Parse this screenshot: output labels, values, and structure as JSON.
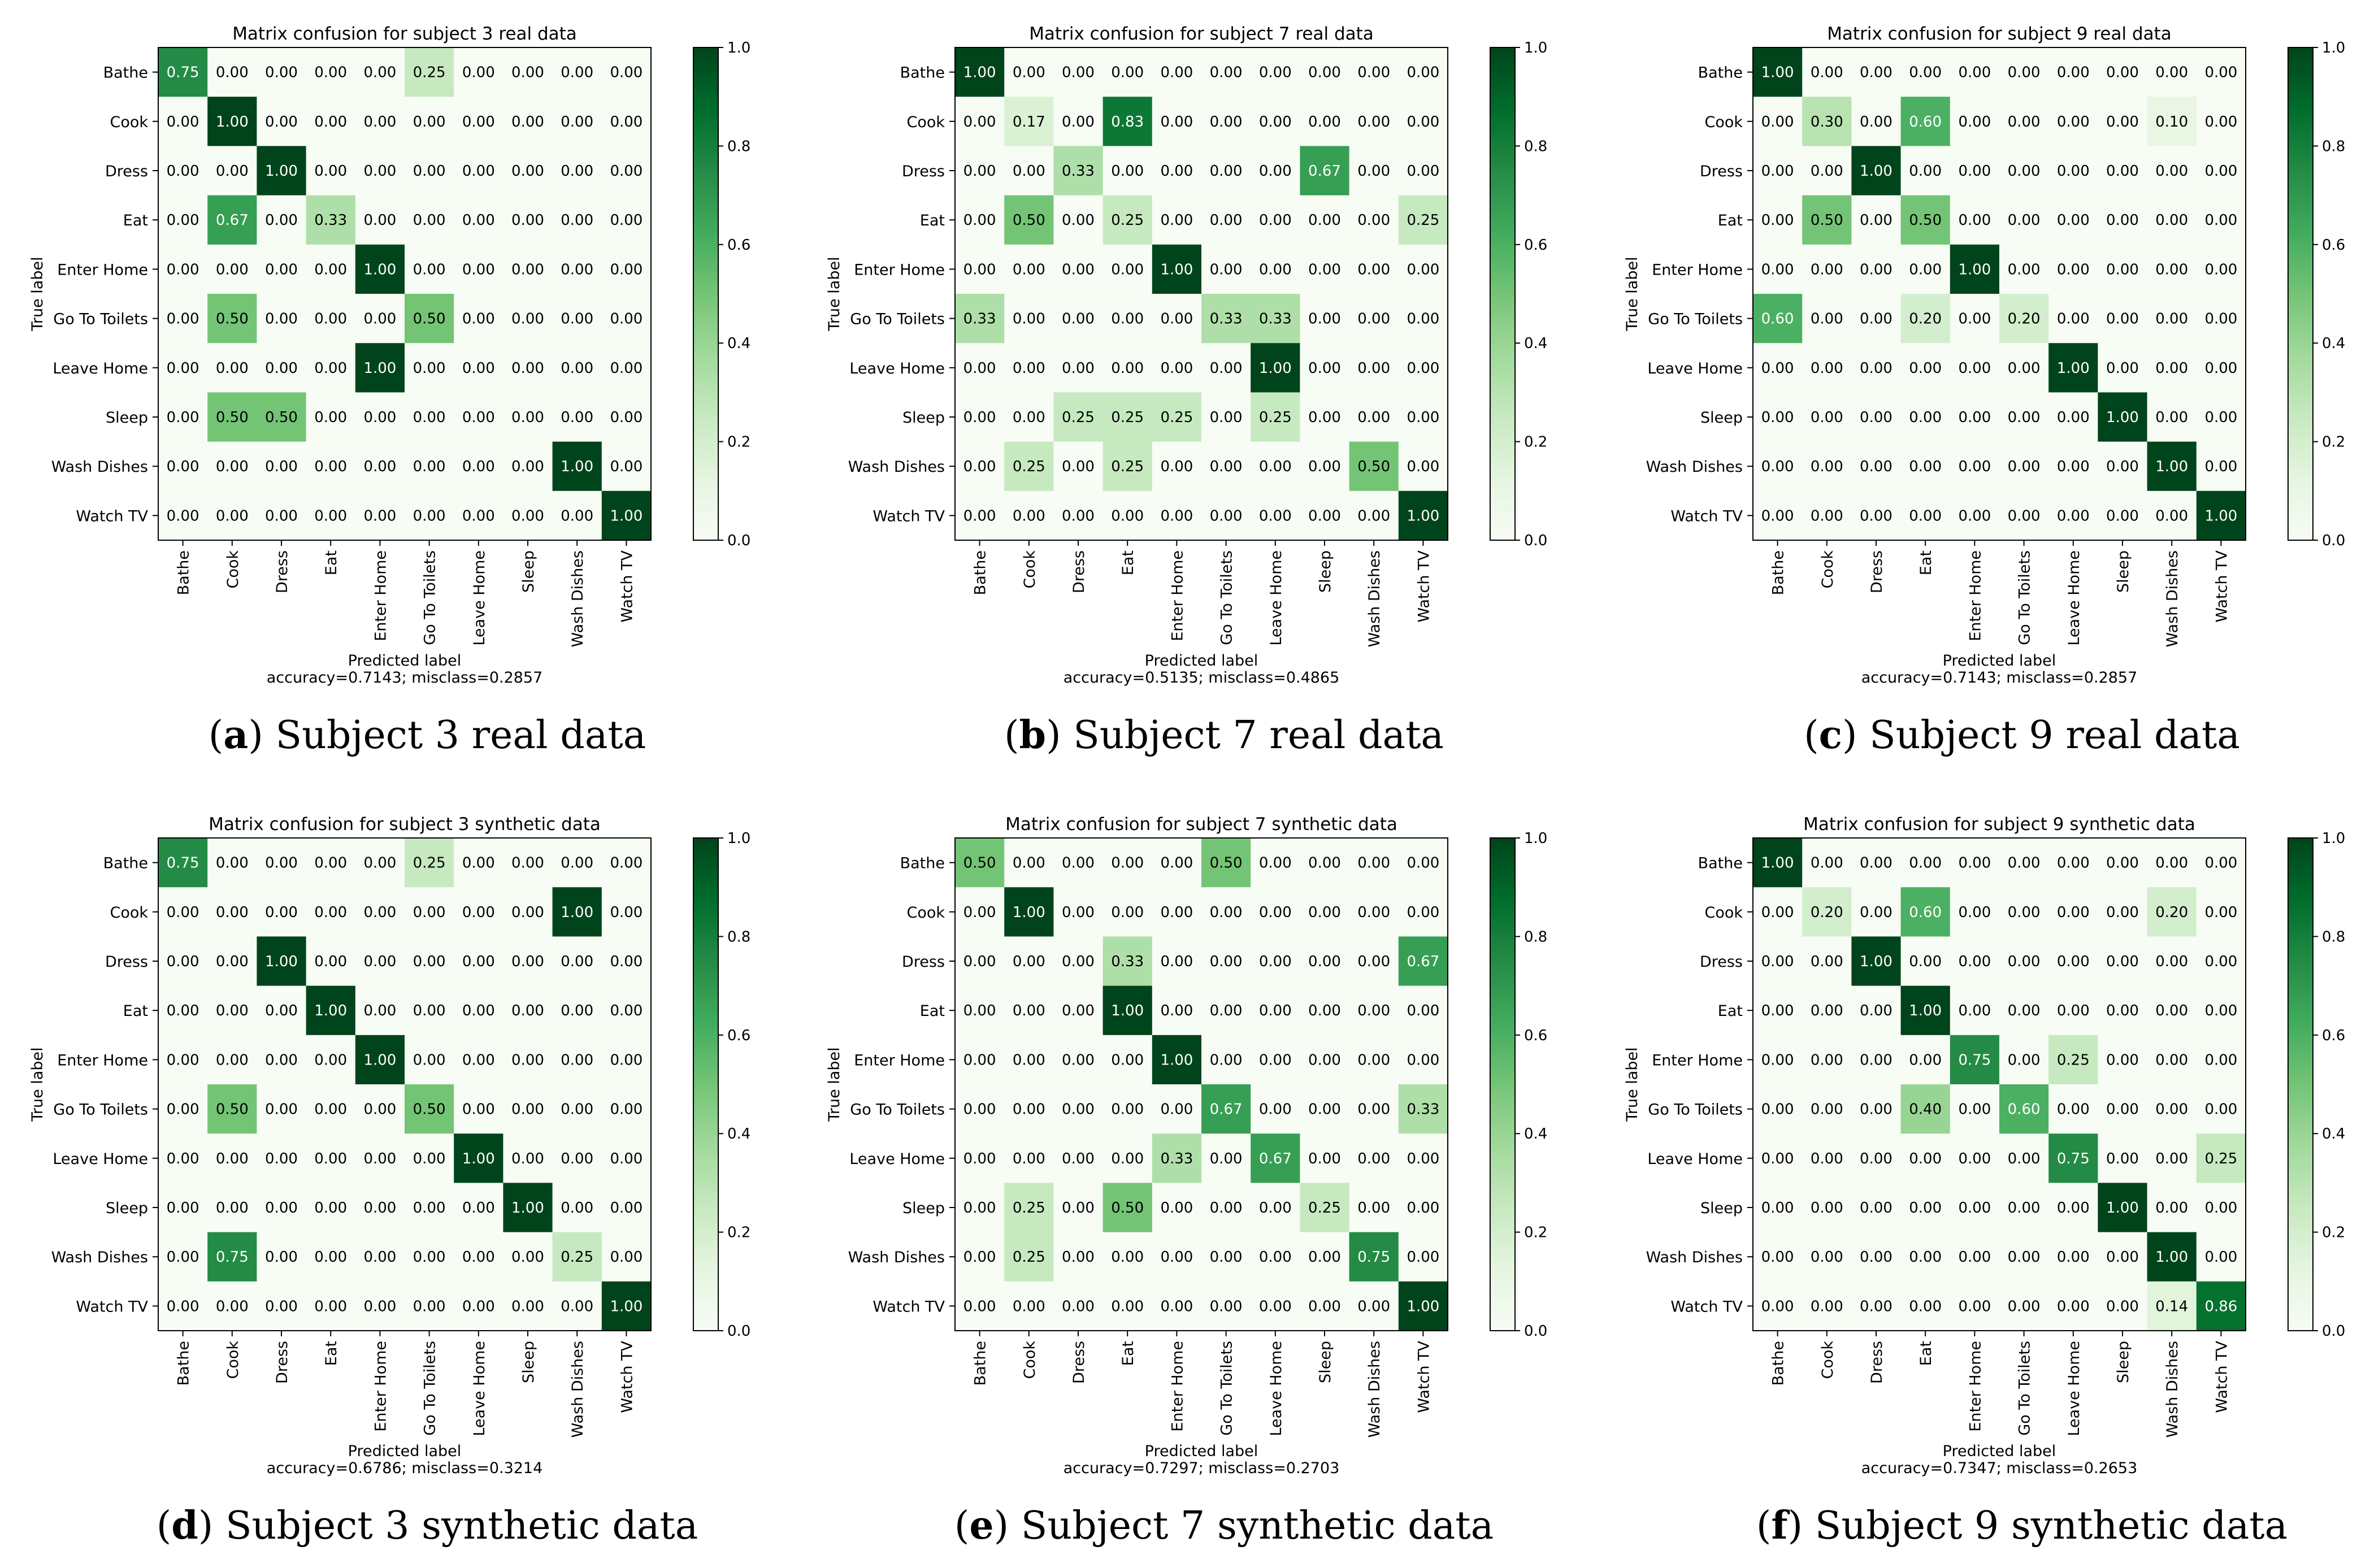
{
  "labels": [
    "Bathe",
    "Cook",
    "Dress",
    "Eat",
    "Enter Home",
    "Go To Toilets",
    "Leave Home",
    "Sleep",
    "Wash Dishes",
    "Watch TV"
  ],
  "xlabel": "Predicted label",
  "ylabel": "True label",
  "colorbar_ticks": [
    "0.0",
    "0.2",
    "0.4",
    "0.6",
    "0.8",
    "1.0"
  ],
  "colors": {
    "low": "#f7fcf5",
    "high": "#00441b",
    "text_dark": "#000000",
    "text_light": "#ffffff"
  },
  "chart_data": [
    {
      "type": "heatmap",
      "title": "Matrix confusion for subject 3 real data",
      "accuracy_text": "accuracy=0.7143; misclass=0.2857",
      "caption_letter": "a",
      "caption_text": " Subject 3 real data",
      "matrix": [
        [
          0.75,
          0,
          0,
          0,
          0,
          0.25,
          0,
          0,
          0,
          0
        ],
        [
          0,
          1,
          0,
          0,
          0,
          0,
          0,
          0,
          0,
          0
        ],
        [
          0,
          0,
          1,
          0,
          0,
          0,
          0,
          0,
          0,
          0
        ],
        [
          0,
          0.67,
          0,
          0.33,
          0,
          0,
          0,
          0,
          0,
          0
        ],
        [
          0,
          0,
          0,
          0,
          1,
          0,
          0,
          0,
          0,
          0
        ],
        [
          0,
          0.5,
          0,
          0,
          0,
          0.5,
          0,
          0,
          0,
          0
        ],
        [
          0,
          0,
          0,
          0,
          1,
          0,
          0,
          0,
          0,
          0
        ],
        [
          0,
          0.5,
          0.5,
          0,
          0,
          0,
          0,
          0,
          0,
          0
        ],
        [
          0,
          0,
          0,
          0,
          0,
          0,
          0,
          0,
          1,
          0
        ],
        [
          0,
          0,
          0,
          0,
          0,
          0,
          0,
          0,
          0,
          1
        ]
      ]
    },
    {
      "type": "heatmap",
      "title": "Matrix confusion for subject 7 real data",
      "accuracy_text": "accuracy=0.5135; misclass=0.4865",
      "caption_letter": "b",
      "caption_text": " Subject 7 real data",
      "matrix": [
        [
          1,
          0,
          0,
          0,
          0,
          0,
          0,
          0,
          0,
          0
        ],
        [
          0,
          0.17,
          0,
          0.83,
          0,
          0,
          0,
          0,
          0,
          0
        ],
        [
          0,
          0,
          0.33,
          0,
          0,
          0,
          0,
          0.67,
          0,
          0
        ],
        [
          0,
          0.5,
          0,
          0.25,
          0,
          0,
          0,
          0,
          0,
          0.25
        ],
        [
          0,
          0,
          0,
          0,
          1,
          0,
          0,
          0,
          0,
          0
        ],
        [
          0.33,
          0,
          0,
          0,
          0,
          0.33,
          0.33,
          0,
          0,
          0
        ],
        [
          0,
          0,
          0,
          0,
          0,
          0,
          1,
          0,
          0,
          0
        ],
        [
          0,
          0,
          0.25,
          0.25,
          0.25,
          0,
          0.25,
          0,
          0,
          0
        ],
        [
          0,
          0.25,
          0,
          0.25,
          0,
          0,
          0,
          0,
          0.5,
          0
        ],
        [
          0,
          0,
          0,
          0,
          0,
          0,
          0,
          0,
          0,
          1
        ]
      ]
    },
    {
      "type": "heatmap",
      "title": "Matrix confusion for subject 9 real data",
      "accuracy_text": "accuracy=0.7143; misclass=0.2857",
      "caption_letter": "c",
      "caption_text": " Subject 9 real data",
      "matrix": [
        [
          1,
          0,
          0,
          0,
          0,
          0,
          0,
          0,
          0,
          0
        ],
        [
          0,
          0.3,
          0,
          0.6,
          0,
          0,
          0,
          0,
          0.1,
          0
        ],
        [
          0,
          0,
          1,
          0,
          0,
          0,
          0,
          0,
          0,
          0
        ],
        [
          0,
          0.5,
          0,
          0.5,
          0,
          0,
          0,
          0,
          0,
          0
        ],
        [
          0,
          0,
          0,
          0,
          1,
          0,
          0,
          0,
          0,
          0
        ],
        [
          0.6,
          0,
          0,
          0.2,
          0,
          0.2,
          0,
          0,
          0,
          0
        ],
        [
          0,
          0,
          0,
          0,
          0,
          0,
          1,
          0,
          0,
          0
        ],
        [
          0,
          0,
          0,
          0,
          0,
          0,
          0,
          1,
          0,
          0
        ],
        [
          0,
          0,
          0,
          0,
          0,
          0,
          0,
          0,
          1,
          0
        ],
        [
          0,
          0,
          0,
          0,
          0,
          0,
          0,
          0,
          0,
          1
        ]
      ]
    },
    {
      "type": "heatmap",
      "title": "Matrix confusion for subject 3 synthetic data",
      "accuracy_text": "accuracy=0.6786; misclass=0.3214",
      "caption_letter": "d",
      "caption_text": " Subject 3 synthetic data",
      "matrix": [
        [
          0.75,
          0,
          0,
          0,
          0,
          0.25,
          0,
          0,
          0,
          0
        ],
        [
          0,
          0,
          0,
          0,
          0,
          0,
          0,
          0,
          1,
          0
        ],
        [
          0,
          0,
          1,
          0,
          0,
          0,
          0,
          0,
          0,
          0
        ],
        [
          0,
          0,
          0,
          1,
          0,
          0,
          0,
          0,
          0,
          0
        ],
        [
          0,
          0,
          0,
          0,
          1,
          0,
          0,
          0,
          0,
          0
        ],
        [
          0,
          0.5,
          0,
          0,
          0,
          0.5,
          0,
          0,
          0,
          0
        ],
        [
          0,
          0,
          0,
          0,
          0,
          0,
          1,
          0,
          0,
          0
        ],
        [
          0,
          0,
          0,
          0,
          0,
          0,
          0,
          1,
          0,
          0
        ],
        [
          0,
          0.75,
          0,
          0,
          0,
          0,
          0,
          0,
          0.25,
          0
        ],
        [
          0,
          0,
          0,
          0,
          0,
          0,
          0,
          0,
          0,
          1
        ]
      ]
    },
    {
      "type": "heatmap",
      "title": "Matrix confusion for subject 7 synthetic data",
      "accuracy_text": "accuracy=0.7297; misclass=0.2703",
      "caption_letter": "e",
      "caption_text": " Subject 7 synthetic data",
      "matrix": [
        [
          0.5,
          0,
          0,
          0,
          0,
          0.5,
          0,
          0,
          0,
          0
        ],
        [
          0,
          1,
          0,
          0,
          0,
          0,
          0,
          0,
          0,
          0
        ],
        [
          0,
          0,
          0,
          0.33,
          0,
          0,
          0,
          0,
          0,
          0.67
        ],
        [
          0,
          0,
          0,
          1,
          0,
          0,
          0,
          0,
          0,
          0
        ],
        [
          0,
          0,
          0,
          0,
          1,
          0,
          0,
          0,
          0,
          0
        ],
        [
          0,
          0,
          0,
          0,
          0,
          0.67,
          0,
          0,
          0,
          0.33
        ],
        [
          0,
          0,
          0,
          0,
          0.33,
          0,
          0.67,
          0,
          0,
          0
        ],
        [
          0,
          0.25,
          0,
          0.5,
          0,
          0,
          0,
          0.25,
          0,
          0
        ],
        [
          0,
          0.25,
          0,
          0,
          0,
          0,
          0,
          0,
          0.75,
          0
        ],
        [
          0,
          0,
          0,
          0,
          0,
          0,
          0,
          0,
          0,
          1
        ]
      ]
    },
    {
      "type": "heatmap",
      "title": "Matrix confusion for subject 9 synthetic data",
      "accuracy_text": "accuracy=0.7347; misclass=0.2653",
      "caption_letter": "f",
      "caption_text": " Subject 9 synthetic data",
      "matrix": [
        [
          1,
          0,
          0,
          0,
          0,
          0,
          0,
          0,
          0,
          0
        ],
        [
          0,
          0.2,
          0,
          0.6,
          0,
          0,
          0,
          0,
          0.2,
          0
        ],
        [
          0,
          0,
          1,
          0,
          0,
          0,
          0,
          0,
          0,
          0
        ],
        [
          0,
          0,
          0,
          1,
          0,
          0,
          0,
          0,
          0,
          0
        ],
        [
          0,
          0,
          0,
          0,
          0.75,
          0,
          0.25,
          0,
          0,
          0
        ],
        [
          0,
          0,
          0,
          0.4,
          0,
          0.6,
          0,
          0,
          0,
          0
        ],
        [
          0,
          0,
          0,
          0,
          0,
          0,
          0.75,
          0,
          0,
          0.25
        ],
        [
          0,
          0,
          0,
          0,
          0,
          0,
          0,
          1,
          0,
          0
        ],
        [
          0,
          0,
          0,
          0,
          0,
          0,
          0,
          0,
          1,
          0
        ],
        [
          0,
          0,
          0,
          0,
          0,
          0,
          0,
          0,
          0.14,
          0.86
        ]
      ]
    }
  ]
}
